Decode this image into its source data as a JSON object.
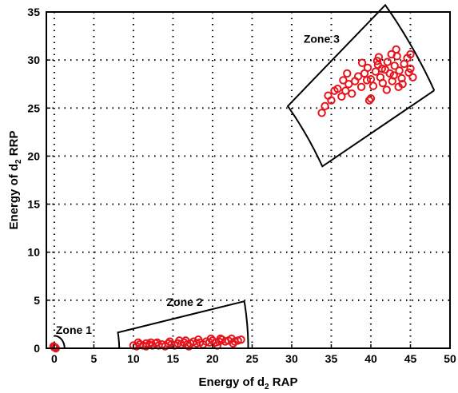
{
  "chart_data": {
    "type": "scatter",
    "xlabel": {
      "pre": "Energy of d",
      "sub": "2",
      "post": " RAP"
    },
    "ylabel": {
      "pre": "Energy of d",
      "sub": "2",
      "post": " RRP"
    },
    "xlim": [
      -1,
      50
    ],
    "ylim": [
      0,
      35
    ],
    "xticks": [
      0,
      5,
      10,
      15,
      20,
      25,
      30,
      35,
      40,
      45,
      50
    ],
    "yticks": [
      0,
      5,
      10,
      15,
      20,
      25,
      30,
      35
    ],
    "grid": true,
    "marker": "open-circle",
    "marker_color": "#e8141c",
    "zones": [
      {
        "label": "Zone 1",
        "outline": {
          "kind": "arc",
          "center": [
            0,
            0
          ],
          "radius": 1.3
        }
      },
      {
        "label": "Zone 2",
        "outline": {
          "kind": "sector",
          "r_inner": 8.2,
          "r_outer": 24.5,
          "angle_min_deg": 0,
          "angle_max_deg": 11.5
        }
      },
      {
        "label": "Zone 3",
        "outline": {
          "kind": "sector",
          "r_inner": 38.8,
          "r_outer": 55.0,
          "angle_min_deg": 29.2,
          "angle_max_deg": 40.5
        }
      }
    ],
    "series": [
      {
        "points": [
          [
            0.0,
            0.1
          ],
          [
            0.2,
            0.0
          ],
          [
            -0.1,
            0.2
          ],
          [
            0.1,
            0.1
          ]
        ]
      },
      {
        "points": [
          [
            10.0,
            0.3
          ],
          [
            10.4,
            0.2
          ],
          [
            10.8,
            0.4
          ],
          [
            11.2,
            0.3
          ],
          [
            11.6,
            0.2
          ],
          [
            12.0,
            0.4
          ],
          [
            12.4,
            0.3
          ],
          [
            12.8,
            0.5
          ],
          [
            13.2,
            0.3
          ],
          [
            13.6,
            0.4
          ],
          [
            14.0,
            0.2
          ],
          [
            14.4,
            0.5
          ],
          [
            14.8,
            0.4
          ],
          [
            15.2,
            0.3
          ],
          [
            15.6,
            0.5
          ],
          [
            16.0,
            0.4
          ],
          [
            16.4,
            0.6
          ],
          [
            16.8,
            0.4
          ],
          [
            17.2,
            0.5
          ],
          [
            17.6,
            0.7
          ],
          [
            18.0,
            0.5
          ],
          [
            18.4,
            0.6
          ],
          [
            18.8,
            0.4
          ],
          [
            19.2,
            0.7
          ],
          [
            19.6,
            0.6
          ],
          [
            20.0,
            0.8
          ],
          [
            20.4,
            0.6
          ],
          [
            20.8,
            0.7
          ],
          [
            21.2,
            0.9
          ],
          [
            21.6,
            0.7
          ],
          [
            22.0,
            0.8
          ],
          [
            22.4,
            1.0
          ],
          [
            22.8,
            0.7
          ],
          [
            23.2,
            0.8
          ],
          [
            23.6,
            0.9
          ],
          [
            10.6,
            0.6
          ],
          [
            12.2,
            0.6
          ],
          [
            14.6,
            0.7
          ],
          [
            16.6,
            0.8
          ],
          [
            18.2,
            0.9
          ],
          [
            19.8,
            1.0
          ],
          [
            21.0,
            1.0
          ],
          [
            22.6,
            0.5
          ],
          [
            17.0,
            0.2
          ],
          [
            13.0,
            0.6
          ],
          [
            20.6,
            0.3
          ],
          [
            15.8,
            0.8
          ],
          [
            11.6,
            0.5
          ]
        ]
      },
      {
        "points": [
          [
            33.8,
            24.5
          ],
          [
            34.2,
            25.2
          ],
          [
            34.6,
            26.3
          ],
          [
            35.0,
            25.8
          ],
          [
            35.4,
            26.8
          ],
          [
            35.8,
            27.0
          ],
          [
            36.3,
            26.2
          ],
          [
            36.8,
            26.8
          ],
          [
            37.2,
            27.5
          ],
          [
            37.6,
            26.5
          ],
          [
            38.0,
            27.8
          ],
          [
            38.4,
            28.3
          ],
          [
            38.8,
            27.2
          ],
          [
            39.2,
            28.6
          ],
          [
            39.6,
            29.2
          ],
          [
            40.0,
            28.0
          ],
          [
            40.3,
            27.3
          ],
          [
            40.6,
            28.8
          ],
          [
            40.9,
            29.5
          ],
          [
            41.2,
            28.2
          ],
          [
            41.5,
            27.6
          ],
          [
            41.8,
            29.0
          ],
          [
            42.1,
            29.8
          ],
          [
            42.4,
            28.6
          ],
          [
            42.7,
            27.8
          ],
          [
            43.0,
            29.4
          ],
          [
            43.3,
            30.4
          ],
          [
            43.6,
            28.9
          ],
          [
            43.9,
            28.1
          ],
          [
            44.2,
            29.6
          ],
          [
            44.6,
            30.2
          ],
          [
            45.0,
            29.1
          ],
          [
            45.3,
            28.2
          ],
          [
            40.0,
            26.0
          ],
          [
            39.8,
            25.8
          ],
          [
            43.2,
            31.1
          ],
          [
            42.6,
            30.6
          ],
          [
            44.0,
            27.5
          ],
          [
            38.9,
            29.7
          ],
          [
            41.0,
            30.3
          ],
          [
            42.0,
            26.9
          ],
          [
            43.5,
            27.2
          ],
          [
            40.8,
            29.9
          ],
          [
            37.0,
            28.6
          ],
          [
            45.0,
            30.6
          ],
          [
            41.4,
            29.1
          ],
          [
            42.9,
            28.4
          ],
          [
            39.5,
            27.9
          ],
          [
            36.5,
            27.9
          ],
          [
            44.8,
            28.7
          ]
        ]
      }
    ]
  }
}
